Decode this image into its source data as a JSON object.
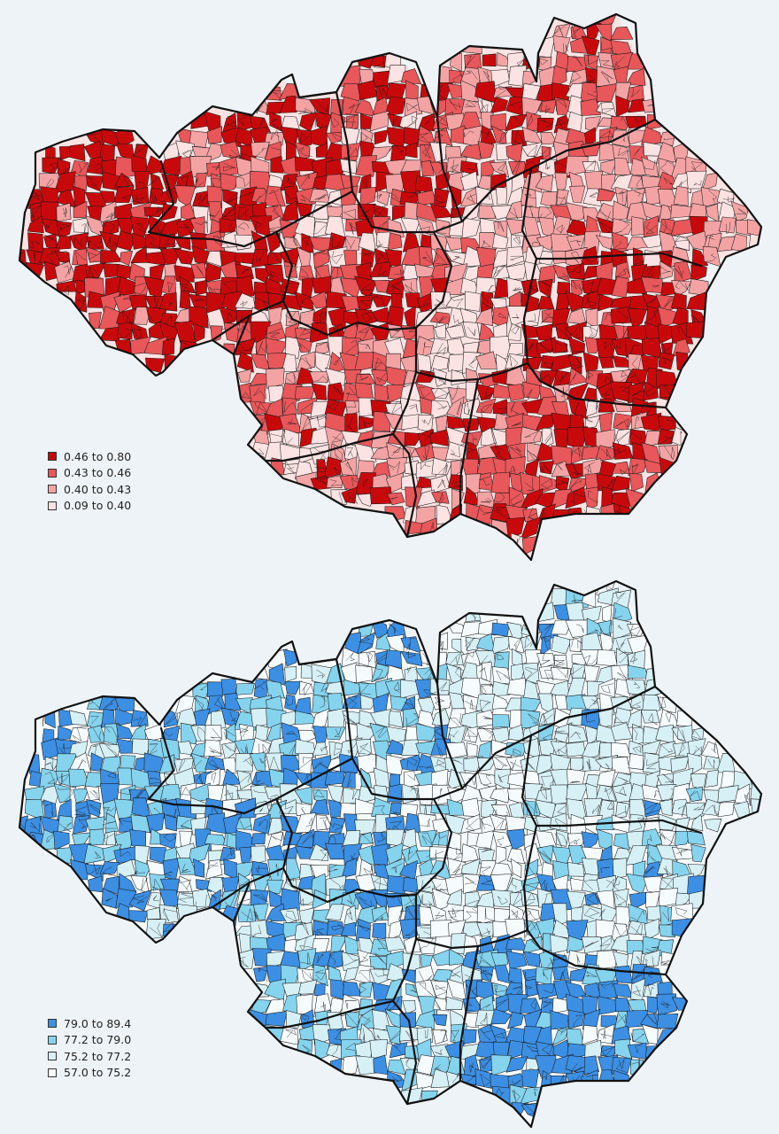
{
  "maps": [
    {
      "id": "top",
      "palette": [
        "#c8090c",
        "#e8575a",
        "#f4a3a4",
        "#fbe3e3"
      ],
      "legend": [
        {
          "label": "0.46 to 0.80",
          "color": "#c8090c"
        },
        {
          "label": "0.43 to 0.46",
          "color": "#e8575a"
        },
        {
          "label": "0.40 to 0.43",
          "color": "#f4a3a4"
        },
        {
          "label": "0.09 to 0.40",
          "color": "#fbe3e3"
        }
      ]
    },
    {
      "id": "bottom",
      "palette": [
        "#3c8fe3",
        "#86d3ee",
        "#d6f0f6",
        "#f6fbfe"
      ],
      "legend": [
        {
          "label": "79.0 to 89.4",
          "color": "#3c8fe3"
        },
        {
          "label": "77.2 to 79.0",
          "color": "#86d3ee"
        },
        {
          "label": "75.2 to 77.2",
          "color": "#d6f0f6"
        },
        {
          "label": "57.0 to 75.2",
          "color": "#f6fbfe"
        }
      ]
    }
  ]
}
